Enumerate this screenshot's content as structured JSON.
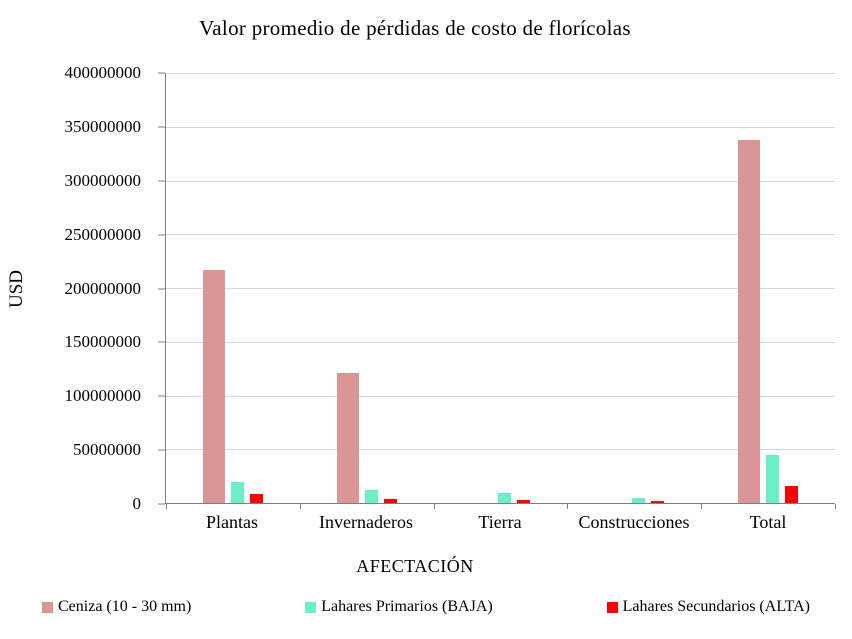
{
  "chart_data": {
    "type": "bar",
    "title": "Valor promedio de pérdidas de costo de florícolas",
    "xlabel": "AFECTACIÓN",
    "ylabel": "USD",
    "ylim": [
      0,
      400000000
    ],
    "ytick_step": 50000000,
    "yticks": [
      0,
      50000000,
      100000000,
      150000000,
      200000000,
      250000000,
      300000000,
      350000000,
      400000000
    ],
    "grid": true,
    "legend_position": "bottom",
    "categories": [
      "Plantas",
      "Invernaderos",
      "Tierra",
      "Construcciones",
      "Total"
    ],
    "series": [
      {
        "name": "Ceniza (10 - 30 mm)",
        "color": "#D99694",
        "values": [
          217000000,
          121000000,
          0,
          0,
          338000000
        ]
      },
      {
        "name": "Lahares Primarios (BAJA)",
        "color": "#6BEFC9",
        "values": [
          20000000,
          12000000,
          9000000,
          5000000,
          45000000
        ]
      },
      {
        "name": "Lahares Secundarios (ALTA)",
        "color": "#FF0000",
        "values": [
          8000000,
          4000000,
          3000000,
          2000000,
          16000000
        ]
      }
    ],
    "axis_color": "#7F7F7F",
    "gridline_color": "#D9D9D9"
  }
}
